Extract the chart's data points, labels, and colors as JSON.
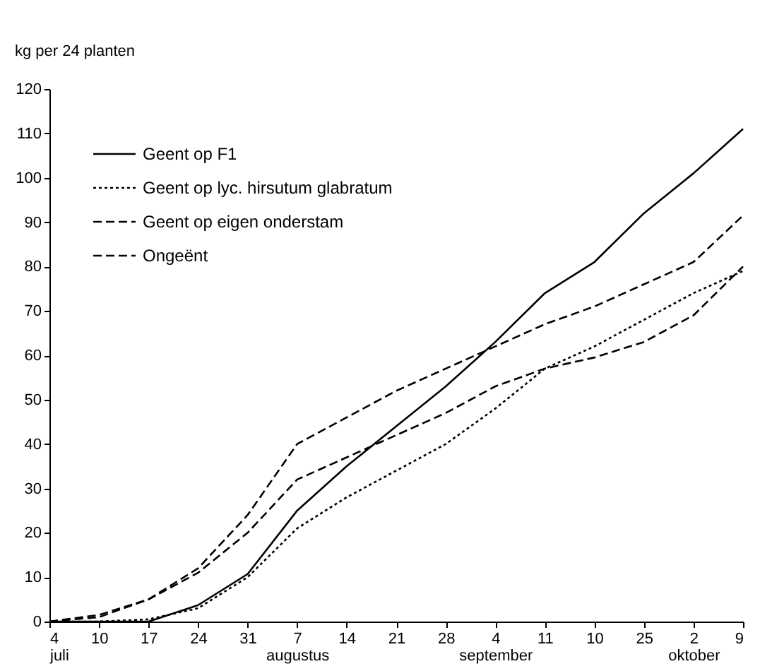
{
  "chart_data": {
    "type": "line",
    "ylabel": "kg per 24 planten",
    "categories": [
      "4\njuli",
      "10",
      "17",
      "24",
      "31",
      "7\naugustus",
      "14",
      "21",
      "28",
      "4\nseptember",
      "11",
      "10",
      "25",
      "2\noktober",
      "9"
    ],
    "series": [
      {
        "name": "Geent op F1",
        "color": "#000000",
        "line_style": "solid",
        "values": [
          0,
          0,
          0,
          3.7,
          10.7,
          25,
          35,
          44,
          53,
          63,
          74,
          81,
          92,
          101,
          111
        ]
      },
      {
        "name": "Geent op lyc. hirsutum glabratum",
        "color": "#000000",
        "line_style": "dotted",
        "values": [
          0,
          0,
          0.5,
          3,
          10,
          21,
          28,
          34,
          40,
          48,
          57,
          62,
          68,
          74,
          79
        ]
      },
      {
        "name": "Geent op eigen onderstam",
        "color": "#000000",
        "line_style": "dashed",
        "values": [
          0,
          1,
          5,
          11,
          20,
          32,
          37,
          42,
          47,
          53,
          57,
          59.5,
          63,
          69,
          80
        ]
      },
      {
        "name": "Ongeënt",
        "color": "#000000",
        "line_style": "dashed",
        "values": [
          0,
          1.5,
          5,
          12,
          24,
          40,
          46,
          52,
          57,
          62,
          67,
          71,
          76,
          81,
          91.5
        ]
      }
    ],
    "ylim": [
      0,
      120
    ],
    "yticks": [
      0,
      10,
      20,
      30,
      40,
      50,
      60,
      70,
      80,
      90,
      100,
      110,
      120
    ],
    "grid": false,
    "legend": "top left",
    "marker": "none"
  }
}
